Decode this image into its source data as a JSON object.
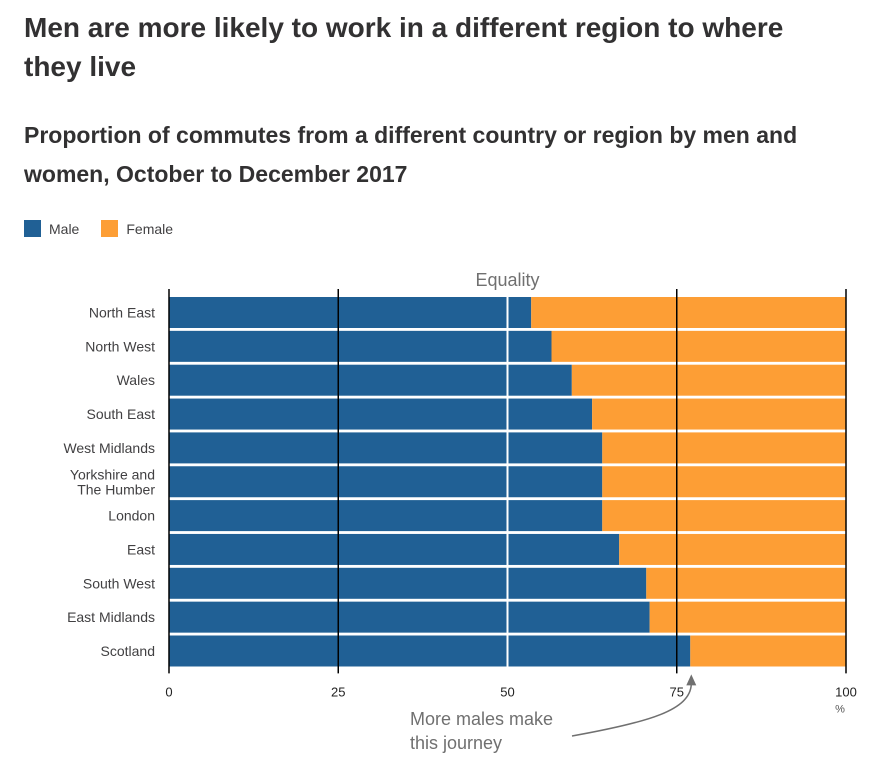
{
  "headline": "Men are more likely to work in a different region to where they live",
  "chart_data": {
    "type": "bar",
    "orientation": "horizontal",
    "stacked": true,
    "title": "Proportion of commutes from a different country or region by men and women, October to December 2017",
    "categories": [
      [
        "North East"
      ],
      [
        "North West"
      ],
      [
        "Wales"
      ],
      [
        "South East"
      ],
      [
        "West Midlands"
      ],
      [
        "Yorkshire and",
        "The Humber"
      ],
      [
        "London"
      ],
      [
        "East"
      ],
      [
        "South West"
      ],
      [
        "East Midlands"
      ],
      [
        "Scotland"
      ]
    ],
    "series": [
      {
        "name": "Male",
        "color": "#206095",
        "values": [
          53.5,
          56.5,
          59.5,
          62.5,
          64,
          64,
          64,
          66.5,
          70.5,
          71,
          77
        ]
      },
      {
        "name": "Female",
        "color": "#fd9e35",
        "values": [
          46.5,
          43.5,
          40.5,
          37.5,
          36,
          36,
          36,
          33.5,
          29.5,
          29,
          23
        ]
      }
    ],
    "xlim": [
      0,
      100
    ],
    "xticks": [
      0,
      25,
      50,
      75,
      100
    ],
    "xunit": "%",
    "grid": true,
    "legend_position": "top-left",
    "annotations": {
      "reference_line": {
        "value": 50,
        "label": "Equality"
      },
      "callout": {
        "lines": [
          "More males make",
          "this journey"
        ],
        "target_value": 77
      }
    }
  }
}
